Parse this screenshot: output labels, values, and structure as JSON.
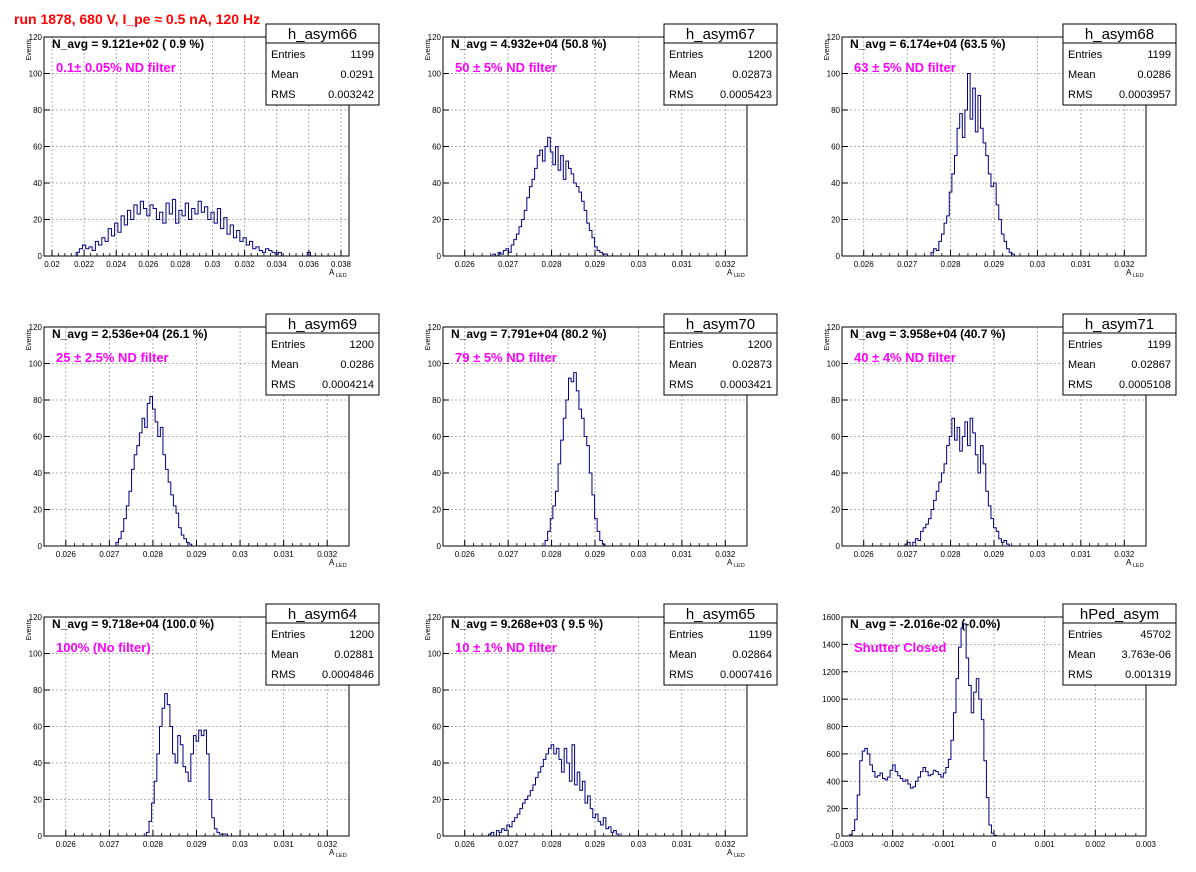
{
  "run_title": "run 1878,   680 V, I_pe ≈ 0.5 nA, 120 Hz",
  "stats_labels": {
    "entries": "Entries",
    "mean": "Mean",
    "rms": "RMS"
  },
  "colors": {
    "run_title": "#ff0000",
    "annotation": "#ff00ff",
    "hist_line": "#000080",
    "grid": "#9a9a9a"
  },
  "chart_data": [
    {
      "type": "bar",
      "name": "h_asym66",
      "navg": "N_avg = 9.121e+02 ( 0.9 %)",
      "annotation": "0.1± 0.05% ND filter",
      "stats": {
        "entries": "1199",
        "mean": "0.0291",
        "rms": "0.003242"
      },
      "xlabel": "A",
      "xlabel_sub": "LED",
      "ylabel": "Events",
      "xlim": [
        0.0195,
        0.0385
      ],
      "ylim": [
        0,
        120
      ],
      "xticks": [
        0.02,
        0.022,
        0.024,
        0.026,
        0.028,
        0.03,
        0.032,
        0.034,
        0.036,
        0.038
      ],
      "xtick_labels": [
        "0.02",
        "0.022",
        "0.024",
        "0.026",
        "0.028",
        "0.03",
        "0.032",
        "0.034",
        "0.036",
        "0.038"
      ],
      "yticks": [
        0,
        20,
        40,
        60,
        80,
        100,
        120
      ],
      "bin_start": 0.0215,
      "bin_width": 0.0002,
      "values": [
        2,
        4,
        6,
        4,
        5,
        3,
        8,
        6,
        10,
        8,
        15,
        11,
        18,
        13,
        22,
        17,
        25,
        20,
        28,
        23,
        30,
        26,
        22,
        28,
        26,
        20,
        24,
        18,
        29,
        23,
        31,
        18,
        25,
        22,
        29,
        20,
        26,
        23,
        30,
        24,
        27,
        20,
        24,
        18,
        26,
        15,
        21,
        12,
        17,
        10,
        14,
        8,
        10,
        6,
        8,
        4,
        5,
        3,
        2,
        4,
        3,
        2,
        1,
        2,
        0,
        0,
        0,
        0,
        0,
        0,
        0,
        0,
        2,
        0,
        0
      ]
    },
    {
      "type": "bar",
      "name": "h_asym67",
      "navg": "N_avg = 4.932e+04 (50.8 %)",
      "annotation": "50 ± 5% ND filter",
      "stats": {
        "entries": "1200",
        "mean": "0.02873",
        "rms": "0.0005423"
      },
      "xlabel": "A",
      "xlabel_sub": "LED",
      "ylabel": "Events",
      "xlim": [
        0.0255,
        0.0325
      ],
      "ylim": [
        0,
        120
      ],
      "xticks": [
        0.026,
        0.027,
        0.028,
        0.029,
        0.03,
        0.031,
        0.032
      ],
      "xtick_labels": [
        "0.026",
        "0.027",
        "0.028",
        "0.029",
        "0.03",
        "0.031",
        "0.032"
      ],
      "yticks": [
        0,
        20,
        40,
        60,
        80,
        100,
        120
      ],
      "bin_start": 0.02665,
      "bin_width": 6e-05,
      "values": [
        1,
        0,
        2,
        1,
        3,
        4,
        2,
        6,
        9,
        12,
        16,
        20,
        25,
        32,
        38,
        42,
        48,
        55,
        58,
        52,
        60,
        65,
        57,
        50,
        60,
        47,
        55,
        42,
        52,
        48,
        45,
        40,
        38,
        35,
        30,
        25,
        18,
        14,
        10,
        5,
        3,
        2,
        1,
        1
      ]
    },
    {
      "type": "bar",
      "name": "h_asym68",
      "navg": "N_avg = 6.174e+04 (63.5 %)",
      "annotation": "63 ± 5% ND filter",
      "stats": {
        "entries": "1199",
        "mean": "0.0286",
        "rms": "0.0003957"
      },
      "xlabel": "A",
      "xlabel_sub": "LED",
      "ylabel": "Events",
      "xlim": [
        0.0255,
        0.0325
      ],
      "ylim": [
        0,
        120
      ],
      "xticks": [
        0.026,
        0.027,
        0.028,
        0.029,
        0.03,
        0.031,
        0.032
      ],
      "xtick_labels": [
        "0.026",
        "0.027",
        "0.028",
        "0.029",
        "0.03",
        "0.031",
        "0.032"
      ],
      "yticks": [
        0,
        20,
        40,
        60,
        80,
        100,
        120
      ],
      "bin_start": 0.02755,
      "bin_width": 6e-05,
      "values": [
        2,
        4,
        3,
        8,
        12,
        18,
        22,
        35,
        45,
        55,
        70,
        78,
        65,
        80,
        100,
        75,
        92,
        68,
        88,
        70,
        62,
        55,
        45,
        38,
        40,
        28,
        20,
        12,
        8,
        4,
        2,
        1
      ]
    },
    {
      "type": "bar",
      "name": "h_asym69",
      "navg": "N_avg = 2.536e+04 (26.1 %)",
      "annotation": "25 ± 2.5% ND filter",
      "stats": {
        "entries": "1200",
        "mean": "0.0286",
        "rms": "0.0004214"
      },
      "xlabel": "A",
      "xlabel_sub": "LED",
      "ylabel": "Events",
      "xlim": [
        0.0255,
        0.0325
      ],
      "ylim": [
        0,
        120
      ],
      "xticks": [
        0.026,
        0.027,
        0.028,
        0.029,
        0.03,
        0.031,
        0.032
      ],
      "xtick_labels": [
        "0.026",
        "0.027",
        "0.028",
        "0.029",
        "0.03",
        "0.031",
        "0.032"
      ],
      "yticks": [
        0,
        20,
        40,
        60,
        80,
        100,
        120
      ],
      "bin_start": 0.02715,
      "bin_width": 6e-05,
      "values": [
        2,
        4,
        8,
        15,
        22,
        30,
        42,
        50,
        55,
        62,
        70,
        65,
        78,
        82,
        75,
        68,
        60,
        65,
        50,
        42,
        35,
        28,
        22,
        18,
        10,
        6,
        4,
        2,
        1
      ]
    },
    {
      "type": "bar",
      "name": "h_asym70",
      "navg": "N_avg = 7.791e+04 (80.2 %)",
      "annotation": "79 ± 5% ND filter",
      "stats": {
        "entries": "1200",
        "mean": "0.02873",
        "rms": "0.0003421"
      },
      "xlabel": "A",
      "xlabel_sub": "LED",
      "ylabel": "Events",
      "xlim": [
        0.0255,
        0.0325
      ],
      "ylim": [
        0,
        120
      ],
      "xticks": [
        0.026,
        0.027,
        0.028,
        0.029,
        0.03,
        0.031,
        0.032
      ],
      "xtick_labels": [
        "0.026",
        "0.027",
        "0.028",
        "0.029",
        "0.03",
        "0.031",
        "0.032"
      ],
      "yticks": [
        0,
        20,
        40,
        60,
        80,
        100,
        120
      ],
      "bin_start": 0.02785,
      "bin_width": 6e-05,
      "values": [
        3,
        8,
        15,
        22,
        30,
        45,
        58,
        70,
        80,
        92,
        90,
        95,
        85,
        75,
        70,
        60,
        55,
        40,
        28,
        15,
        8,
        3,
        1
      ]
    },
    {
      "type": "bar",
      "name": "h_asym71",
      "navg": "N_avg = 3.958e+04 (40.7 %)",
      "annotation": "40 ± 4% ND filter",
      "stats": {
        "entries": "1199",
        "mean": "0.02867",
        "rms": "0.0005108"
      },
      "xlabel": "A",
      "xlabel_sub": "LED",
      "ylabel": "Events",
      "xlim": [
        0.0255,
        0.0325
      ],
      "ylim": [
        0,
        120
      ],
      "xticks": [
        0.026,
        0.027,
        0.028,
        0.029,
        0.03,
        0.031,
        0.032
      ],
      "xtick_labels": [
        "0.026",
        "0.027",
        "0.028",
        "0.029",
        "0.03",
        "0.031",
        "0.032"
      ],
      "yticks": [
        0,
        20,
        40,
        60,
        80,
        100,
        120
      ],
      "bin_start": 0.02695,
      "bin_width": 6e-05,
      "values": [
        1,
        2,
        0,
        2,
        4,
        3,
        8,
        10,
        12,
        15,
        20,
        25,
        30,
        35,
        40,
        45,
        55,
        60,
        70,
        58,
        65,
        52,
        60,
        68,
        55,
        70,
        62,
        50,
        40,
        55,
        45,
        30,
        22,
        15,
        10,
        8,
        4,
        2,
        3,
        1
      ]
    },
    {
      "type": "bar",
      "name": "h_asym64",
      "navg": "N_avg = 9.718e+04 (100.0 %)",
      "annotation": "100% (No filter)",
      "stats": {
        "entries": "1200",
        "mean": "0.02881",
        "rms": "0.0004846"
      },
      "xlabel": "A",
      "xlabel_sub": "LED",
      "ylabel": "Events",
      "xlim": [
        0.0255,
        0.0325
      ],
      "ylim": [
        0,
        120
      ],
      "xticks": [
        0.026,
        0.027,
        0.028,
        0.029,
        0.03,
        0.031,
        0.032
      ],
      "xtick_labels": [
        "0.026",
        "0.027",
        "0.028",
        "0.029",
        "0.03",
        "0.031",
        "0.032"
      ],
      "yticks": [
        0,
        20,
        40,
        60,
        80,
        100,
        120
      ],
      "bin_start": 0.02785,
      "bin_width": 6e-05,
      "values": [
        2,
        8,
        18,
        30,
        45,
        60,
        70,
        78,
        72,
        60,
        45,
        40,
        55,
        50,
        38,
        35,
        30,
        45,
        55,
        52,
        58,
        55,
        58,
        45,
        20,
        10,
        4,
        2,
        1,
        1,
        1
      ]
    },
    {
      "type": "bar",
      "name": "h_asym65",
      "navg": "N_avg = 9.268e+03 ( 9.5 %)",
      "annotation": "10 ± 1% ND filter",
      "stats": {
        "entries": "1199",
        "mean": "0.02864",
        "rms": "0.0007416"
      },
      "xlabel": "A",
      "xlabel_sub": "LED",
      "ylabel": "Events",
      "xlim": [
        0.0255,
        0.0325
      ],
      "ylim": [
        0,
        120
      ],
      "xticks": [
        0.026,
        0.027,
        0.028,
        0.029,
        0.03,
        0.031,
        0.032
      ],
      "xtick_labels": [
        "0.026",
        "0.027",
        "0.028",
        "0.029",
        "0.03",
        "0.031",
        "0.032"
      ],
      "yticks": [
        0,
        20,
        40,
        60,
        80,
        100,
        120
      ],
      "bin_start": 0.02655,
      "bin_width": 6e-05,
      "values": [
        1,
        2,
        0,
        3,
        2,
        4,
        3,
        6,
        5,
        8,
        10,
        12,
        15,
        18,
        20,
        22,
        25,
        28,
        32,
        35,
        38,
        42,
        45,
        48,
        50,
        45,
        48,
        42,
        35,
        48,
        40,
        30,
        50,
        28,
        35,
        25,
        30,
        18,
        22,
        15,
        10,
        12,
        8,
        6,
        10,
        4,
        5,
        2,
        3,
        1
      ]
    },
    {
      "type": "bar",
      "name": "hPed_asym",
      "navg": "N_avg = -2.016e-02 (-0.0%)",
      "annotation": "Shutter Closed",
      "stats": {
        "entries": "45702",
        "mean": "3.763e-06",
        "rms": "0.001319"
      },
      "xlabel": "",
      "xlabel_sub": "",
      "ylabel": "",
      "xlim": [
        -0.003,
        0.003
      ],
      "ylim": [
        0,
        1600
      ],
      "xticks": [
        -0.003,
        -0.002,
        -0.001,
        0,
        0.001,
        0.002,
        0.003
      ],
      "xtick_labels": [
        "-0.003",
        "-0.002",
        "-0.001",
        "0",
        "0.001",
        "0.002",
        "0.003"
      ],
      "yticks": [
        0,
        200,
        400,
        600,
        800,
        1000,
        1200,
        1400,
        1600
      ],
      "bin_start": -0.00285,
      "bin_width": 5e-05,
      "values": [
        10,
        40,
        120,
        300,
        550,
        620,
        640,
        600,
        520,
        470,
        430,
        440,
        460,
        420,
        410,
        430,
        480,
        520,
        470,
        440,
        420,
        400,
        410,
        380,
        350,
        360,
        400,
        430,
        470,
        500,
        470,
        440,
        450,
        480,
        470,
        450,
        430,
        460,
        500,
        560,
        700,
        900,
        1150,
        1380,
        1520,
        1550,
        1300,
        1100,
        900,
        1050,
        1150,
        1000,
        850,
        550,
        280,
        80,
        20,
        5,
        0,
        0
      ]
    }
  ]
}
